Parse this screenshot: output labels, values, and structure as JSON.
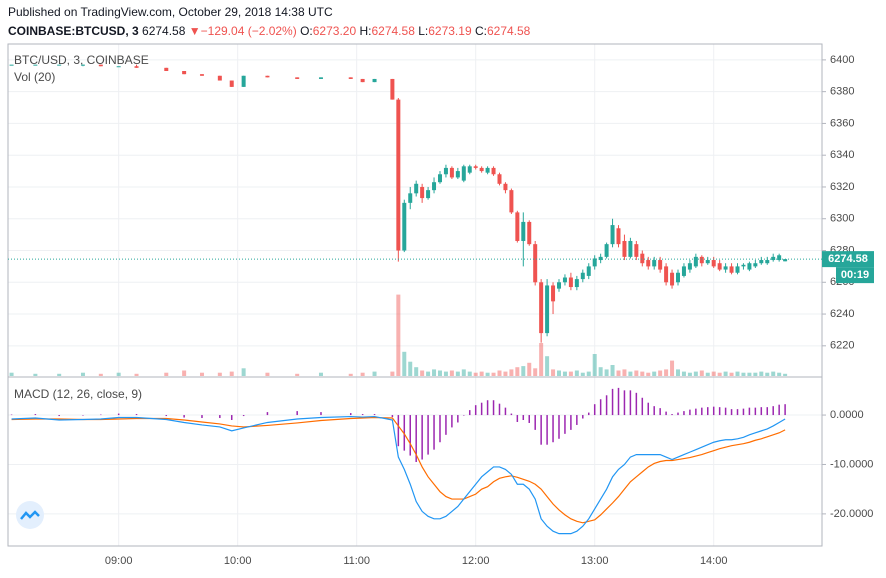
{
  "header": {
    "published": "Published on TradingView.com, October 29, 2018 14:38 UTC",
    "symbol": "COINBASE:BTCUSD, 3",
    "price": "6274.58",
    "arrow": "▼",
    "change": "−129.04 (−2.02%)",
    "o_label": "O:",
    "o_value": "6273.20",
    "h_label": "H:",
    "h_value": "6274.58",
    "l_label": "L:",
    "l_value": "6273.19",
    "c_label": "C:",
    "c_value": "6274.58"
  },
  "chart_data": [
    {
      "type": "candlestick",
      "title": "BTC/USD, 3, COINBASE",
      "up_color": "#26a69a",
      "down_color": "#ef5350",
      "grid": true,
      "xlim": [
        8.07,
        14.91
      ],
      "xticks": [
        {
          "value": 9,
          "label": "09:00"
        },
        {
          "value": 10,
          "label": "10:00"
        },
        {
          "value": 11,
          "label": "11:00"
        },
        {
          "value": 12,
          "label": "12:00"
        },
        {
          "value": 13,
          "label": "13:00"
        },
        {
          "value": 14,
          "label": "14:00"
        }
      ],
      "ylim": [
        6201,
        6410
      ],
      "yticks": [
        6220,
        6240,
        6260,
        6280,
        6300,
        6320,
        6340,
        6360,
        6380,
        6400
      ],
      "last_price": 6274.58,
      "last_price_label": "6274.58",
      "countdown": "00:19",
      "x": [
        8.1,
        8.3,
        8.5,
        8.7,
        8.85,
        9.0,
        9.15,
        9.4,
        9.55,
        9.7,
        9.85,
        9.95,
        10.05,
        10.25,
        10.5,
        10.7,
        10.95,
        11.05,
        11.15,
        11.3,
        11.35,
        11.4,
        11.45,
        11.5,
        11.55,
        11.6,
        11.65,
        11.7,
        11.75,
        11.8,
        11.85,
        11.9,
        11.95,
        12,
        12.05,
        12.1,
        12.15,
        12.2,
        12.25,
        12.3,
        12.35,
        12.4,
        12.45,
        12.5,
        12.55,
        12.6,
        12.65,
        12.7,
        12.75,
        12.8,
        12.85,
        12.9,
        12.95,
        13,
        13.05,
        13.1,
        13.15,
        13.2,
        13.25,
        13.3,
        13.35,
        13.4,
        13.45,
        13.5,
        13.55,
        13.6,
        13.65,
        13.7,
        13.75,
        13.8,
        13.85,
        13.9,
        13.95,
        14,
        14.05,
        14.1,
        14.15,
        14.2,
        14.25,
        14.3,
        14.35,
        14.4,
        14.45,
        14.5,
        14.55,
        14.6
      ],
      "open": [
        6397,
        6397,
        6397,
        6397,
        6397,
        6396,
        6396,
        6395,
        6393,
        6391,
        6390,
        6387,
        6383,
        6390,
        6389,
        6388,
        6389,
        6388,
        6386,
        6388,
        6375,
        6280,
        6310,
        6316,
        6320,
        6313,
        6318,
        6323,
        6328,
        6332,
        6326,
        6324,
        6329,
        6333,
        6332,
        6329,
        6332,
        6328,
        6322,
        6318,
        6304,
        6286,
        6298,
        6284,
        6260,
        6228,
        6258,
        6256,
        6260,
        6263,
        6257,
        6262,
        6264,
        6270,
        6274,
        6276,
        6284,
        6294,
        6286,
        6276,
        6284,
        6278,
        6274,
        6270,
        6274,
        6270,
        6266,
        6260,
        6264,
        6268,
        6270,
        6276,
        6272,
        6274,
        6272,
        6268,
        6270,
        6266,
        6270,
        6268,
        6270,
        6272,
        6272,
        6274,
        6274,
        6273.2
      ],
      "high": [
        6397,
        6397,
        6397,
        6397,
        6397,
        6396,
        6397,
        6395,
        6393,
        6391,
        6390,
        6387,
        6390,
        6390,
        6389,
        6389,
        6389,
        6388,
        6388,
        6388,
        6376,
        6312,
        6320,
        6324,
        6322,
        6320,
        6326,
        6330,
        6334,
        6333,
        6332,
        6334,
        6334,
        6334,
        6333,
        6333,
        6333,
        6329,
        6323,
        6319,
        6305,
        6304,
        6299,
        6286,
        6262,
        6262,
        6260,
        6262,
        6265,
        6266,
        6264,
        6268,
        6272,
        6277,
        6278,
        6285,
        6300,
        6296,
        6290,
        6288,
        6286,
        6280,
        6276,
        6276,
        6276,
        6272,
        6268,
        6268,
        6272,
        6274,
        6278,
        6277,
        6276,
        6276,
        6274,
        6272,
        6272,
        6272,
        6272,
        6273,
        6274,
        6276,
        6276,
        6278,
        6278,
        6274.58
      ],
      "low": [
        6397,
        6397,
        6397,
        6396,
        6396,
        6396,
        6395,
        6393,
        6391,
        6390,
        6387,
        6383,
        6383,
        6389,
        6388,
        6388,
        6388,
        6386,
        6386,
        6375,
        6273,
        6279,
        6306,
        6314,
        6310,
        6312,
        6316,
        6322,
        6326,
        6325,
        6325,
        6323,
        6328,
        6331,
        6329,
        6328,
        6327,
        6321,
        6316,
        6303,
        6285,
        6270,
        6283,
        6258,
        6222,
        6226,
        6240,
        6254,
        6258,
        6255,
        6255,
        6260,
        6262,
        6268,
        6272,
        6275,
        6282,
        6282,
        6274,
        6275,
        6274,
        6270,
        6268,
        6268,
        6266,
        6258,
        6256,
        6258,
        6263,
        6266,
        6269,
        6270,
        6271,
        6269,
        6267,
        6266,
        6265,
        6265,
        6268,
        6267,
        6269,
        6271,
        6271,
        6273,
        6273,
        6273.19
      ],
      "close": [
        6397,
        6397,
        6397,
        6397,
        6396,
        6396,
        6395,
        6393,
        6391,
        6390,
        6387,
        6383,
        6390,
        6389,
        6388,
        6389,
        6388,
        6386,
        6388,
        6375,
        6280,
        6310,
        6316,
        6322,
        6313,
        6318,
        6323,
        6328,
        6332,
        6326,
        6330,
        6333,
        6333,
        6332,
        6330,
        6332,
        6328,
        6322,
        6318,
        6304,
        6286,
        6298,
        6284,
        6260,
        6228,
        6258,
        6248,
        6260,
        6263,
        6257,
        6262,
        6266,
        6270,
        6275,
        6276,
        6284,
        6296,
        6284,
        6276,
        6286,
        6276,
        6272,
        6270,
        6274,
        6268,
        6260,
        6258,
        6266,
        6270,
        6272,
        6276,
        6272,
        6274,
        6270,
        6268,
        6270,
        6266,
        6270,
        6271,
        6272,
        6272,
        6274,
        6274,
        6276,
        6277,
        6274.58
      ],
      "volume": {
        "title": "Vol (20)",
        "vlim": [
          0,
          100
        ],
        "values": [
          3,
          2,
          2,
          3,
          2,
          3,
          2,
          3,
          5,
          3,
          3,
          4,
          7,
          3,
          2,
          3,
          2,
          3,
          4,
          4,
          74,
          22,
          13,
          8,
          5,
          4,
          6,
          5,
          4,
          5,
          4,
          6,
          4,
          3,
          4,
          3,
          3,
          5,
          4,
          6,
          8,
          9,
          12,
          7,
          30,
          18,
          6,
          5,
          4,
          4,
          5,
          3,
          4,
          20,
          8,
          6,
          10,
          5,
          6,
          4,
          5,
          4,
          3,
          4,
          5,
          6,
          14,
          6,
          4,
          3,
          4,
          5,
          3,
          4,
          3,
          4,
          3,
          4,
          3,
          3,
          3,
          4,
          3,
          4,
          3,
          2
        ]
      }
    },
    {
      "type": "macd",
      "title": "MACD (12, 26, close, 9)",
      "grid": true,
      "ylim": [
        -26.5,
        7.5
      ],
      "yticks": [
        {
          "value": 0,
          "label": "0.0000"
        },
        {
          "value": -10,
          "label": "-10.0000"
        },
        {
          "value": -20,
          "label": "-20.0000"
        }
      ],
      "macd": {
        "color": "#2196f3",
        "values": [
          -0.8,
          -0.6,
          -1.0,
          -0.9,
          -0.8,
          -0.5,
          -0.5,
          -0.9,
          -1.5,
          -2.0,
          -2.4,
          -3.2,
          -2.6,
          -1.5,
          -0.8,
          -0.5,
          -0.3,
          -0.4,
          -0.3,
          -1.0,
          -8.5,
          -11,
          -14,
          -17.5,
          -19.5,
          -20.5,
          -21,
          -21,
          -20.5,
          -19.5,
          -18.5,
          -17,
          -15.5,
          -14,
          -12.5,
          -11.5,
          -10.5,
          -10.5,
          -11,
          -12,
          -14,
          -14,
          -15,
          -17,
          -21,
          -22.5,
          -23.5,
          -24,
          -24,
          -24,
          -23.5,
          -22.5,
          -21,
          -19,
          -17,
          -15,
          -12.5,
          -11,
          -10,
          -8.5,
          -8,
          -8,
          -8,
          -8,
          -8,
          -8.5,
          -9,
          -8.5,
          -8,
          -7.5,
          -7,
          -6.5,
          -6,
          -5.5,
          -5.2,
          -5,
          -5,
          -4.8,
          -4.5,
          -4,
          -3.6,
          -3.2,
          -2.8,
          -2.2,
          -1.5,
          -0.8
        ]
      },
      "signal": {
        "color": "#ff6d00",
        "values": [
          -0.9,
          -0.8,
          -0.8,
          -0.9,
          -0.9,
          -0.8,
          -0.7,
          -0.7,
          -1.0,
          -1.4,
          -1.8,
          -2.2,
          -2.4,
          -2.1,
          -1.6,
          -1.1,
          -0.7,
          -0.6,
          -0.5,
          -0.6,
          -2.2,
          -3.8,
          -5.8,
          -8,
          -10.5,
          -12.5,
          -14,
          -15.5,
          -16.5,
          -17,
          -17,
          -17,
          -16.5,
          -16,
          -15,
          -14.5,
          -13.5,
          -12.8,
          -12.5,
          -12.3,
          -12.6,
          -13,
          -13.4,
          -14,
          -15,
          -16.5,
          -18,
          -19.2,
          -20.2,
          -21,
          -21.5,
          -21.8,
          -21.5,
          -21.2,
          -20.2,
          -19,
          -17.8,
          -16.5,
          -15,
          -13.5,
          -12.5,
          -11.5,
          -10.5,
          -9.8,
          -9.4,
          -9.2,
          -9.2,
          -9,
          -8.8,
          -8.6,
          -8.3,
          -8,
          -7.6,
          -7.2,
          -6.8,
          -6.5,
          -6.2,
          -6,
          -5.8,
          -5.5,
          -5.1,
          -4.8,
          -4.4,
          -4,
          -3.6,
          -3
        ]
      },
      "histogram": {
        "color": "#9c27b0",
        "values": [
          0.1,
          0.2,
          -0.2,
          0,
          0.1,
          0.3,
          0.2,
          -0.2,
          -0.5,
          -0.6,
          -0.6,
          -1.0,
          -0.2,
          0.6,
          0.8,
          0.6,
          0.4,
          0.2,
          0.2,
          -0.4,
          -6.3,
          -7.2,
          -8.2,
          -9.5,
          -9,
          -8,
          -7,
          -5.5,
          -4,
          -2.5,
          -1.5,
          0,
          1,
          2,
          2.5,
          3,
          3,
          2.3,
          1.5,
          0.3,
          -1.4,
          -1,
          -1.6,
          -3,
          -6,
          -6,
          -5.5,
          -4.8,
          -3.8,
          -3,
          -2,
          -0.7,
          0.5,
          2.2,
          3.2,
          4,
          5.3,
          5.5,
          5,
          5,
          4.5,
          3.5,
          2.5,
          1.8,
          1.4,
          0.7,
          0.2,
          0.5,
          0.8,
          1.1,
          1.3,
          1.5,
          1.6,
          1.7,
          1.6,
          1.5,
          1.2,
          1.2,
          1.3,
          1.5,
          1.5,
          1.6,
          1.6,
          1.8,
          2.1,
          2.2
        ]
      }
    }
  ]
}
